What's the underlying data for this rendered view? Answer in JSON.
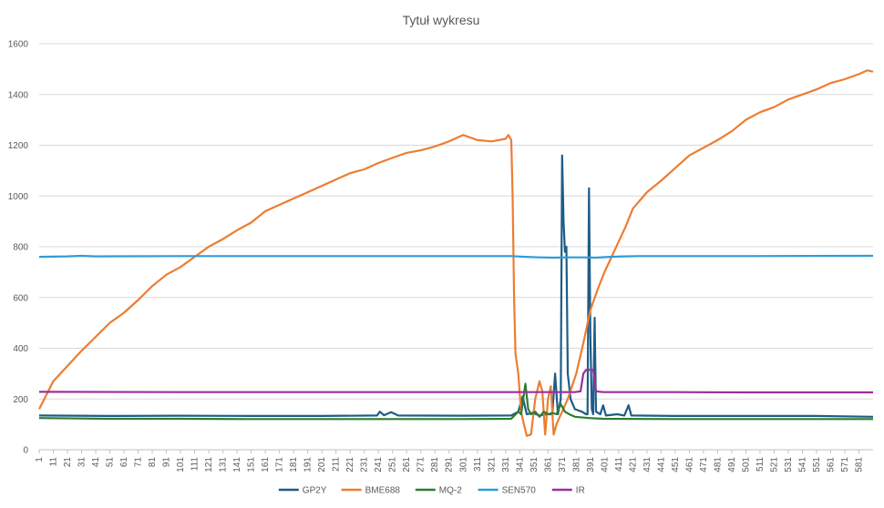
{
  "chart_data": {
    "type": "line",
    "title": "Tytuł wykresu",
    "xlabel": "",
    "ylabel": "",
    "xlim": [
      1,
      591
    ],
    "ylim": [
      0,
      1600
    ],
    "y_ticks": [
      0,
      200,
      400,
      600,
      800,
      1000,
      1200,
      1400,
      1600
    ],
    "x_ticks": [
      1,
      11,
      21,
      31,
      41,
      51,
      61,
      71,
      81,
      91,
      101,
      111,
      121,
      131,
      141,
      151,
      161,
      171,
      181,
      191,
      201,
      211,
      221,
      231,
      241,
      251,
      261,
      271,
      281,
      291,
      301,
      311,
      321,
      331,
      341,
      351,
      361,
      371,
      381,
      391,
      401,
      411,
      421,
      431,
      441,
      451,
      461,
      471,
      481,
      491,
      501,
      511,
      521,
      531,
      541,
      551,
      561,
      571,
      581
    ],
    "grid": true,
    "legend_position": "bottom",
    "series": [
      {
        "name": "GP2Y",
        "color": "#1f5c87",
        "points": [
          [
            1,
            135
          ],
          [
            50,
            133
          ],
          [
            100,
            134
          ],
          [
            150,
            133
          ],
          [
            200,
            133
          ],
          [
            240,
            135
          ],
          [
            242,
            150
          ],
          [
            245,
            136
          ],
          [
            250,
            148
          ],
          [
            255,
            135
          ],
          [
            300,
            134
          ],
          [
            335,
            135
          ],
          [
            340,
            150
          ],
          [
            343,
            210
          ],
          [
            346,
            140
          ],
          [
            350,
            145
          ],
          [
            355,
            135
          ],
          [
            360,
            140
          ],
          [
            364,
            140
          ],
          [
            366,
            300
          ],
          [
            368,
            140
          ],
          [
            370,
            200
          ],
          [
            371,
            1160
          ],
          [
            372,
            900
          ],
          [
            373,
            780
          ],
          [
            374,
            800
          ],
          [
            375,
            300
          ],
          [
            377,
            200
          ],
          [
            380,
            160
          ],
          [
            385,
            150
          ],
          [
            388,
            140
          ],
          [
            389,
            140
          ],
          [
            390,
            1030
          ],
          [
            391,
            450
          ],
          [
            392,
            160
          ],
          [
            393,
            140
          ],
          [
            394,
            520
          ],
          [
            395,
            150
          ],
          [
            398,
            140
          ],
          [
            400,
            175
          ],
          [
            402,
            135
          ],
          [
            410,
            140
          ],
          [
            415,
            135
          ],
          [
            418,
            175
          ],
          [
            420,
            135
          ],
          [
            450,
            133
          ],
          [
            500,
            133
          ],
          [
            550,
            133
          ],
          [
            591,
            130
          ]
        ]
      },
      {
        "name": "BME688",
        "color": "#ed7d31",
        "points": [
          [
            1,
            160
          ],
          [
            11,
            270
          ],
          [
            21,
            330
          ],
          [
            31,
            390
          ],
          [
            41,
            445
          ],
          [
            51,
            500
          ],
          [
            61,
            540
          ],
          [
            71,
            590
          ],
          [
            81,
            645
          ],
          [
            91,
            690
          ],
          [
            101,
            720
          ],
          [
            111,
            760
          ],
          [
            121,
            800
          ],
          [
            131,
            830
          ],
          [
            141,
            865
          ],
          [
            151,
            895
          ],
          [
            161,
            940
          ],
          [
            171,
            965
          ],
          [
            181,
            990
          ],
          [
            191,
            1015
          ],
          [
            201,
            1040
          ],
          [
            211,
            1065
          ],
          [
            221,
            1090
          ],
          [
            231,
            1105
          ],
          [
            241,
            1130
          ],
          [
            251,
            1150
          ],
          [
            261,
            1170
          ],
          [
            271,
            1180
          ],
          [
            281,
            1195
          ],
          [
            291,
            1215
          ],
          [
            301,
            1240
          ],
          [
            311,
            1220
          ],
          [
            321,
            1215
          ],
          [
            326,
            1220
          ],
          [
            331,
            1225
          ],
          [
            333,
            1240
          ],
          [
            335,
            1220
          ],
          [
            336,
            1000
          ],
          [
            337,
            600
          ],
          [
            338,
            380
          ],
          [
            340,
            300
          ],
          [
            342,
            150
          ],
          [
            344,
            100
          ],
          [
            346,
            55
          ],
          [
            349,
            60
          ],
          [
            352,
            200
          ],
          [
            355,
            270
          ],
          [
            357,
            230
          ],
          [
            359,
            60
          ],
          [
            361,
            200
          ],
          [
            363,
            250
          ],
          [
            365,
            60
          ],
          [
            367,
            100
          ],
          [
            371,
            150
          ],
          [
            375,
            200
          ],
          [
            381,
            300
          ],
          [
            386,
            420
          ],
          [
            391,
            550
          ],
          [
            396,
            630
          ],
          [
            401,
            700
          ],
          [
            406,
            760
          ],
          [
            411,
            820
          ],
          [
            416,
            880
          ],
          [
            421,
            950
          ],
          [
            431,
            1015
          ],
          [
            441,
            1060
          ],
          [
            451,
            1110
          ],
          [
            461,
            1160
          ],
          [
            471,
            1190
          ],
          [
            481,
            1220
          ],
          [
            491,
            1255
          ],
          [
            501,
            1300
          ],
          [
            511,
            1330
          ],
          [
            521,
            1350
          ],
          [
            531,
            1380
          ],
          [
            541,
            1400
          ],
          [
            551,
            1420
          ],
          [
            561,
            1445
          ],
          [
            571,
            1460
          ],
          [
            581,
            1480
          ],
          [
            587,
            1495
          ],
          [
            591,
            1490
          ]
        ]
      },
      {
        "name": "MQ-2",
        "color": "#2e7d32",
        "points": [
          [
            1,
            125
          ],
          [
            50,
            122
          ],
          [
            100,
            122
          ],
          [
            150,
            121
          ],
          [
            200,
            121
          ],
          [
            250,
            121
          ],
          [
            300,
            121
          ],
          [
            335,
            122
          ],
          [
            340,
            150
          ],
          [
            342,
            140
          ],
          [
            345,
            260
          ],
          [
            347,
            160
          ],
          [
            349,
            140
          ],
          [
            352,
            150
          ],
          [
            355,
            130
          ],
          [
            358,
            150
          ],
          [
            361,
            140
          ],
          [
            364,
            145
          ],
          [
            367,
            140
          ],
          [
            370,
            180
          ],
          [
            373,
            150
          ],
          [
            376,
            140
          ],
          [
            380,
            130
          ],
          [
            390,
            125
          ],
          [
            400,
            122
          ],
          [
            450,
            121
          ],
          [
            500,
            121
          ],
          [
            550,
            121
          ],
          [
            591,
            121
          ]
        ]
      },
      {
        "name": "SEN570",
        "color": "#2e9cd8",
        "points": [
          [
            1,
            760
          ],
          [
            21,
            762
          ],
          [
            31,
            764
          ],
          [
            41,
            762
          ],
          [
            100,
            763
          ],
          [
            200,
            763
          ],
          [
            300,
            763
          ],
          [
            335,
            763
          ],
          [
            345,
            760
          ],
          [
            355,
            758
          ],
          [
            365,
            757
          ],
          [
            375,
            758
          ],
          [
            385,
            758
          ],
          [
            395,
            757
          ],
          [
            405,
            760
          ],
          [
            415,
            762
          ],
          [
            425,
            763
          ],
          [
            500,
            763
          ],
          [
            591,
            764
          ]
        ]
      },
      {
        "name": "IR",
        "color": "#9b2f9b",
        "points": [
          [
            1,
            228
          ],
          [
            100,
            227
          ],
          [
            200,
            227
          ],
          [
            300,
            227
          ],
          [
            340,
            227
          ],
          [
            380,
            227
          ],
          [
            384,
            230
          ],
          [
            386,
            300
          ],
          [
            388,
            315
          ],
          [
            393,
            315
          ],
          [
            395,
            230
          ],
          [
            400,
            227
          ],
          [
            450,
            227
          ],
          [
            500,
            226
          ],
          [
            591,
            226
          ]
        ]
      }
    ]
  }
}
